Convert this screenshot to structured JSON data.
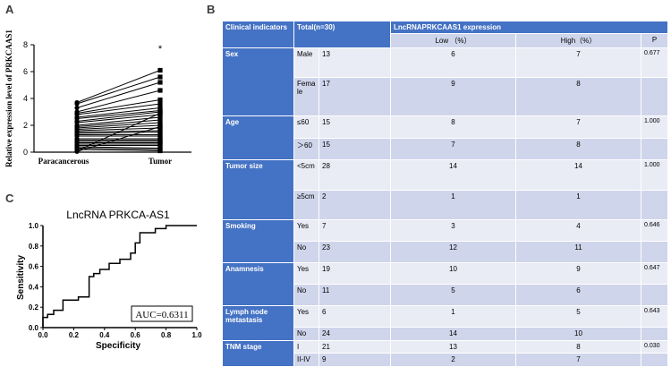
{
  "panel_a": {
    "letter": "A",
    "ylabel": "Relative expression level of PRKCAAS1",
    "y_ticks": [
      "0",
      "2",
      "4",
      "6",
      "8"
    ],
    "x_labels": [
      "Paracancerous",
      "Tumor"
    ],
    "significance": "*"
  },
  "panel_b": {
    "letter": "B",
    "header": {
      "clinical": "Clinical indicators",
      "total": "Total(n=30)",
      "expression": "LncRNAPRKCAAS1 expression",
      "low": "Low （%）",
      "high": "High（%）",
      "p": "P"
    },
    "groups": [
      {
        "name": "Sex",
        "rows": [
          {
            "label": "Male",
            "total": "13",
            "low": "6",
            "high": "7",
            "p": "0.677"
          },
          {
            "label": "Fema le",
            "total": "17",
            "low": "9",
            "high": "8",
            "p": ""
          }
        ]
      },
      {
        "name": "Age",
        "rows": [
          {
            "label": "≤60",
            "total": "15",
            "low": "8",
            "high": "7",
            "p": "1.000"
          },
          {
            "label": "＞60",
            "total": "15",
            "low": "7",
            "high": "8",
            "p": ""
          }
        ]
      },
      {
        "name": "Tumor size",
        "rows": [
          {
            "label": "<5cm",
            "total": "28",
            "low": "14",
            "high": "14",
            "p": "1.000"
          },
          {
            "label": "≥5cm",
            "total": "2",
            "low": "1",
            "high": "1",
            "p": ""
          }
        ]
      },
      {
        "name": "Smoking",
        "rows": [
          {
            "label": "Yes",
            "total": "7",
            "low": "3",
            "high": "4",
            "p": "0.646"
          },
          {
            "label": "No",
            "total": "23",
            "low": "12",
            "high": "11",
            "p": ""
          }
        ]
      },
      {
        "name": "Anamnesis",
        "rows": [
          {
            "label": "Yes",
            "total": "19",
            "low": "10",
            "high": "9",
            "p": "0.647"
          },
          {
            "label": "No",
            "total": "11",
            "low": "5",
            "high": "6",
            "p": ""
          }
        ]
      },
      {
        "name": "Lymph node metastasis",
        "rows": [
          {
            "label": "Yes",
            "total": "6",
            "low": "1",
            "high": "5",
            "p": "0.643"
          },
          {
            "label": "No",
            "total": "24",
            "low": "14",
            "high": "10",
            "p": ""
          }
        ]
      },
      {
        "name": "TNM stage",
        "rows": [
          {
            "label": "I",
            "total": "21",
            "low": "13",
            "high": "8",
            "p": "0.030"
          },
          {
            "label": "II-IV",
            "total": "9",
            "low": "2",
            "high": "7",
            "p": ""
          }
        ]
      }
    ]
  },
  "panel_c": {
    "letter": "C",
    "title": "LncRNA PRKCA-AS1",
    "xlabel": "Specificity",
    "ylabel": "Sensitivity",
    "x_ticks": [
      "0.0",
      "0.2",
      "0.4",
      "0.6",
      "0.8",
      "1.0"
    ],
    "y_ticks": [
      "0.0",
      "0.2",
      "0.4",
      "0.6",
      "0.8",
      "1.0"
    ],
    "auc_label": "AUC=0.6311"
  },
  "chart_data": [
    {
      "type": "line",
      "title": "",
      "xlabel": "",
      "ylabel": "Relative expression level of PRKCAAS1",
      "categories": [
        "Paracancerous",
        "Tumor"
      ],
      "ylim": [
        0,
        8
      ],
      "paired_values": [
        [
          3.7,
          6.1
        ],
        [
          3.6,
          5.6
        ],
        [
          3.3,
          5.2
        ],
        [
          3.0,
          4.6
        ],
        [
          2.9,
          3.9
        ],
        [
          2.8,
          3.6
        ],
        [
          2.6,
          3.3
        ],
        [
          2.5,
          3.1
        ],
        [
          2.3,
          3.0
        ],
        [
          2.2,
          2.8
        ],
        [
          2.0,
          2.6
        ],
        [
          1.9,
          2.4
        ],
        [
          1.8,
          2.2
        ],
        [
          1.7,
          2.0
        ],
        [
          1.6,
          1.8
        ],
        [
          1.5,
          1.6
        ],
        [
          1.4,
          1.5
        ],
        [
          1.3,
          1.3
        ],
        [
          1.2,
          1.2
        ],
        [
          1.0,
          1.0
        ],
        [
          0.9,
          0.9
        ],
        [
          0.8,
          0.8
        ],
        [
          0.7,
          0.7
        ],
        [
          0.6,
          0.6
        ],
        [
          0.5,
          0.5
        ],
        [
          0.4,
          0.3
        ],
        [
          0.3,
          0.2
        ],
        [
          0.2,
          0.1
        ],
        [
          0.1,
          2.9
        ],
        [
          0.05,
          1.9
        ]
      ],
      "annotation": "*"
    },
    {
      "type": "line",
      "title": "LncRNA PRKCA-AS1",
      "xlabel": "Specificity",
      "ylabel": "Sensitivity",
      "xlim": [
        0,
        1
      ],
      "ylim": [
        0,
        1
      ],
      "x": [
        0.0,
        0.0,
        0.03,
        0.03,
        0.07,
        0.07,
        0.13,
        0.13,
        0.23,
        0.23,
        0.3,
        0.3,
        0.33,
        0.33,
        0.37,
        0.37,
        0.43,
        0.43,
        0.5,
        0.5,
        0.57,
        0.57,
        0.6,
        0.6,
        0.63,
        0.63,
        0.73,
        0.73,
        0.8,
        0.8,
        1.0
      ],
      "y": [
        0.0,
        0.1,
        0.1,
        0.13,
        0.13,
        0.17,
        0.17,
        0.27,
        0.27,
        0.3,
        0.3,
        0.5,
        0.5,
        0.53,
        0.53,
        0.57,
        0.57,
        0.63,
        0.63,
        0.67,
        0.67,
        0.73,
        0.73,
        0.83,
        0.83,
        0.93,
        0.93,
        0.97,
        0.97,
        1.0,
        1.0
      ],
      "annotation": "AUC=0.6311"
    }
  ]
}
